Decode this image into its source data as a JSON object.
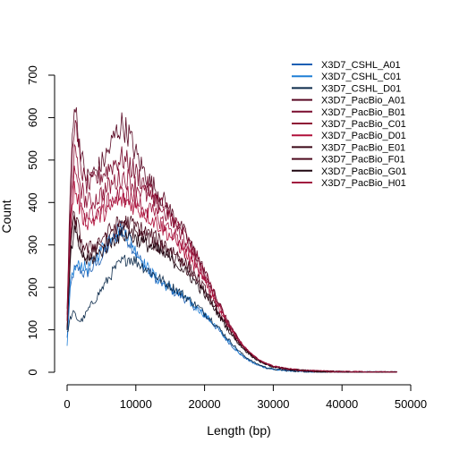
{
  "chart_data": {
    "type": "line",
    "title": "",
    "xlabel": "Length (bp)",
    "ylabel": "Count",
    "xlim": [
      0,
      50000
    ],
    "ylim": [
      0,
      700
    ],
    "x_ticks": [
      0,
      10000,
      20000,
      30000,
      40000,
      50000
    ],
    "x_tick_labels": [
      "0",
      "10000",
      "20000",
      "30000",
      "40000",
      "50000"
    ],
    "y_ticks": [
      0,
      100,
      200,
      300,
      400,
      500,
      600,
      700
    ],
    "y_tick_labels": [
      "0",
      "100",
      "200",
      "300",
      "400",
      "500",
      "600",
      "700"
    ],
    "grid": false,
    "legend_position": "top-right",
    "x": [
      0,
      500,
      1000,
      1500,
      2000,
      2500,
      3000,
      4000,
      5000,
      6000,
      7000,
      8000,
      9000,
      10000,
      11000,
      12000,
      13000,
      14000,
      15000,
      16000,
      17000,
      18000,
      19000,
      20000,
      21000,
      22000,
      23000,
      24000,
      25000,
      26000,
      27000,
      28000,
      29000,
      30000,
      32000,
      34000,
      36000,
      38000,
      40000,
      42000,
      44000,
      46000,
      48000
    ],
    "series": [
      {
        "name": "X3D7_CSHL_A01",
        "color": "#1a5fb4",
        "values": [
          80,
          200,
          240,
          245,
          240,
          230,
          235,
          250,
          270,
          295,
          320,
          330,
          310,
          280,
          255,
          235,
          220,
          205,
          195,
          185,
          175,
          160,
          150,
          135,
          118,
          100,
          80,
          62,
          45,
          32,
          22,
          15,
          10,
          7,
          4,
          2,
          1,
          1,
          0,
          0,
          0,
          0,
          0
        ]
      },
      {
        "name": "X3D7_CSHL_C01",
        "color": "#1f7fd6",
        "values": [
          60,
          220,
          240,
          250,
          255,
          248,
          245,
          265,
          290,
          315,
          335,
          340,
          320,
          285,
          260,
          240,
          222,
          208,
          198,
          188,
          178,
          162,
          150,
          136,
          120,
          102,
          82,
          64,
          47,
          34,
          24,
          16,
          11,
          7,
          4,
          2,
          1,
          1,
          0,
          0,
          0,
          0,
          0
        ]
      },
      {
        "name": "X3D7_CSHL_D01",
        "color": "#0b2a4a",
        "values": [
          90,
          130,
          140,
          125,
          120,
          130,
          145,
          170,
          195,
          220,
          245,
          260,
          270,
          262,
          250,
          238,
          226,
          214,
          204,
          194,
          182,
          168,
          155,
          140,
          124,
          106,
          86,
          68,
          50,
          36,
          25,
          17,
          11,
          7,
          4,
          2,
          1,
          1,
          0,
          0,
          0,
          0,
          0
        ]
      },
      {
        "name": "X3D7_PacBio_A01",
        "color": "#5a0a25",
        "values": [
          150,
          450,
          650,
          580,
          520,
          470,
          460,
          470,
          490,
          520,
          560,
          585,
          560,
          515,
          480,
          450,
          430,
          405,
          380,
          355,
          330,
          300,
          270,
          238,
          200,
          165,
          130,
          100,
          75,
          55,
          40,
          28,
          20,
          14,
          8,
          5,
          3,
          2,
          1,
          1,
          0,
          0,
          0
        ]
      },
      {
        "name": "X3D7_PacBio_B01",
        "color": "#7a0c2e",
        "values": [
          130,
          420,
          600,
          540,
          490,
          450,
          440,
          450,
          465,
          480,
          495,
          505,
          490,
          470,
          450,
          430,
          410,
          392,
          372,
          350,
          326,
          298,
          268,
          236,
          200,
          165,
          130,
          100,
          76,
          56,
          40,
          29,
          20,
          14,
          8,
          5,
          3,
          2,
          1,
          1,
          0,
          0,
          0
        ]
      },
      {
        "name": "X3D7_PacBio_C01",
        "color": "#8e0f35",
        "values": [
          120,
          380,
          520,
          480,
          440,
          410,
          400,
          405,
          420,
          435,
          450,
          460,
          455,
          440,
          425,
          410,
          395,
          380,
          362,
          342,
          318,
          292,
          262,
          230,
          196,
          162,
          128,
          99,
          75,
          55,
          40,
          28,
          20,
          14,
          8,
          5,
          3,
          2,
          1,
          1,
          0,
          0,
          0
        ]
      },
      {
        "name": "X3D7_PacBio_D01",
        "color": "#b0103a",
        "values": [
          110,
          330,
          440,
          410,
          380,
          360,
          355,
          360,
          372,
          385,
          398,
          405,
          400,
          390,
          378,
          366,
          352,
          338,
          322,
          304,
          284,
          262,
          238,
          212,
          184,
          154,
          124,
          97,
          74,
          55,
          40,
          28,
          20,
          14,
          8,
          5,
          3,
          2,
          1,
          1,
          0,
          0,
          0
        ]
      },
      {
        "name": "X3D7_PacBio_E01",
        "color": "#3a0716",
        "values": [
          100,
          290,
          360,
          330,
          300,
          280,
          275,
          285,
          300,
          315,
          330,
          340,
          338,
          330,
          320,
          310,
          300,
          290,
          278,
          265,
          250,
          232,
          212,
          190,
          166,
          140,
          114,
          90,
          69,
          51,
          37,
          26,
          18,
          12,
          7,
          4,
          2,
          1,
          1,
          0,
          0,
          0,
          0
        ]
      },
      {
        "name": "X3D7_PacBio_F01",
        "color": "#4d0a1e",
        "values": [
          105,
          300,
          380,
          345,
          315,
          295,
          290,
          300,
          315,
          330,
          345,
          355,
          352,
          345,
          335,
          325,
          315,
          304,
          292,
          278,
          262,
          242,
          220,
          196,
          170,
          143,
          116,
          91,
          70,
          52,
          38,
          27,
          19,
          13,
          8,
          5,
          3,
          2,
          1,
          0,
          0,
          0,
          0
        ]
      },
      {
        "name": "X3D7_PacBio_G01",
        "color": "#1e0510",
        "values": [
          95,
          270,
          330,
          310,
          285,
          268,
          262,
          270,
          285,
          300,
          315,
          325,
          322,
          315,
          306,
          297,
          288,
          278,
          267,
          255,
          241,
          224,
          205,
          184,
          161,
          136,
          111,
          87,
          67,
          50,
          36,
          25,
          18,
          12,
          7,
          4,
          2,
          1,
          1,
          0,
          0,
          0,
          0
        ]
      },
      {
        "name": "X3D7_PacBio_H01",
        "color": "#a1163f",
        "values": [
          125,
          360,
          470,
          435,
          400,
          378,
          370,
          375,
          388,
          400,
          412,
          420,
          416,
          405,
          392,
          380,
          366,
          352,
          336,
          318,
          298,
          275,
          250,
          222,
          192,
          160,
          128,
          99,
          75,
          55,
          40,
          28,
          20,
          14,
          8,
          5,
          3,
          2,
          1,
          1,
          0,
          0,
          0
        ]
      }
    ]
  }
}
